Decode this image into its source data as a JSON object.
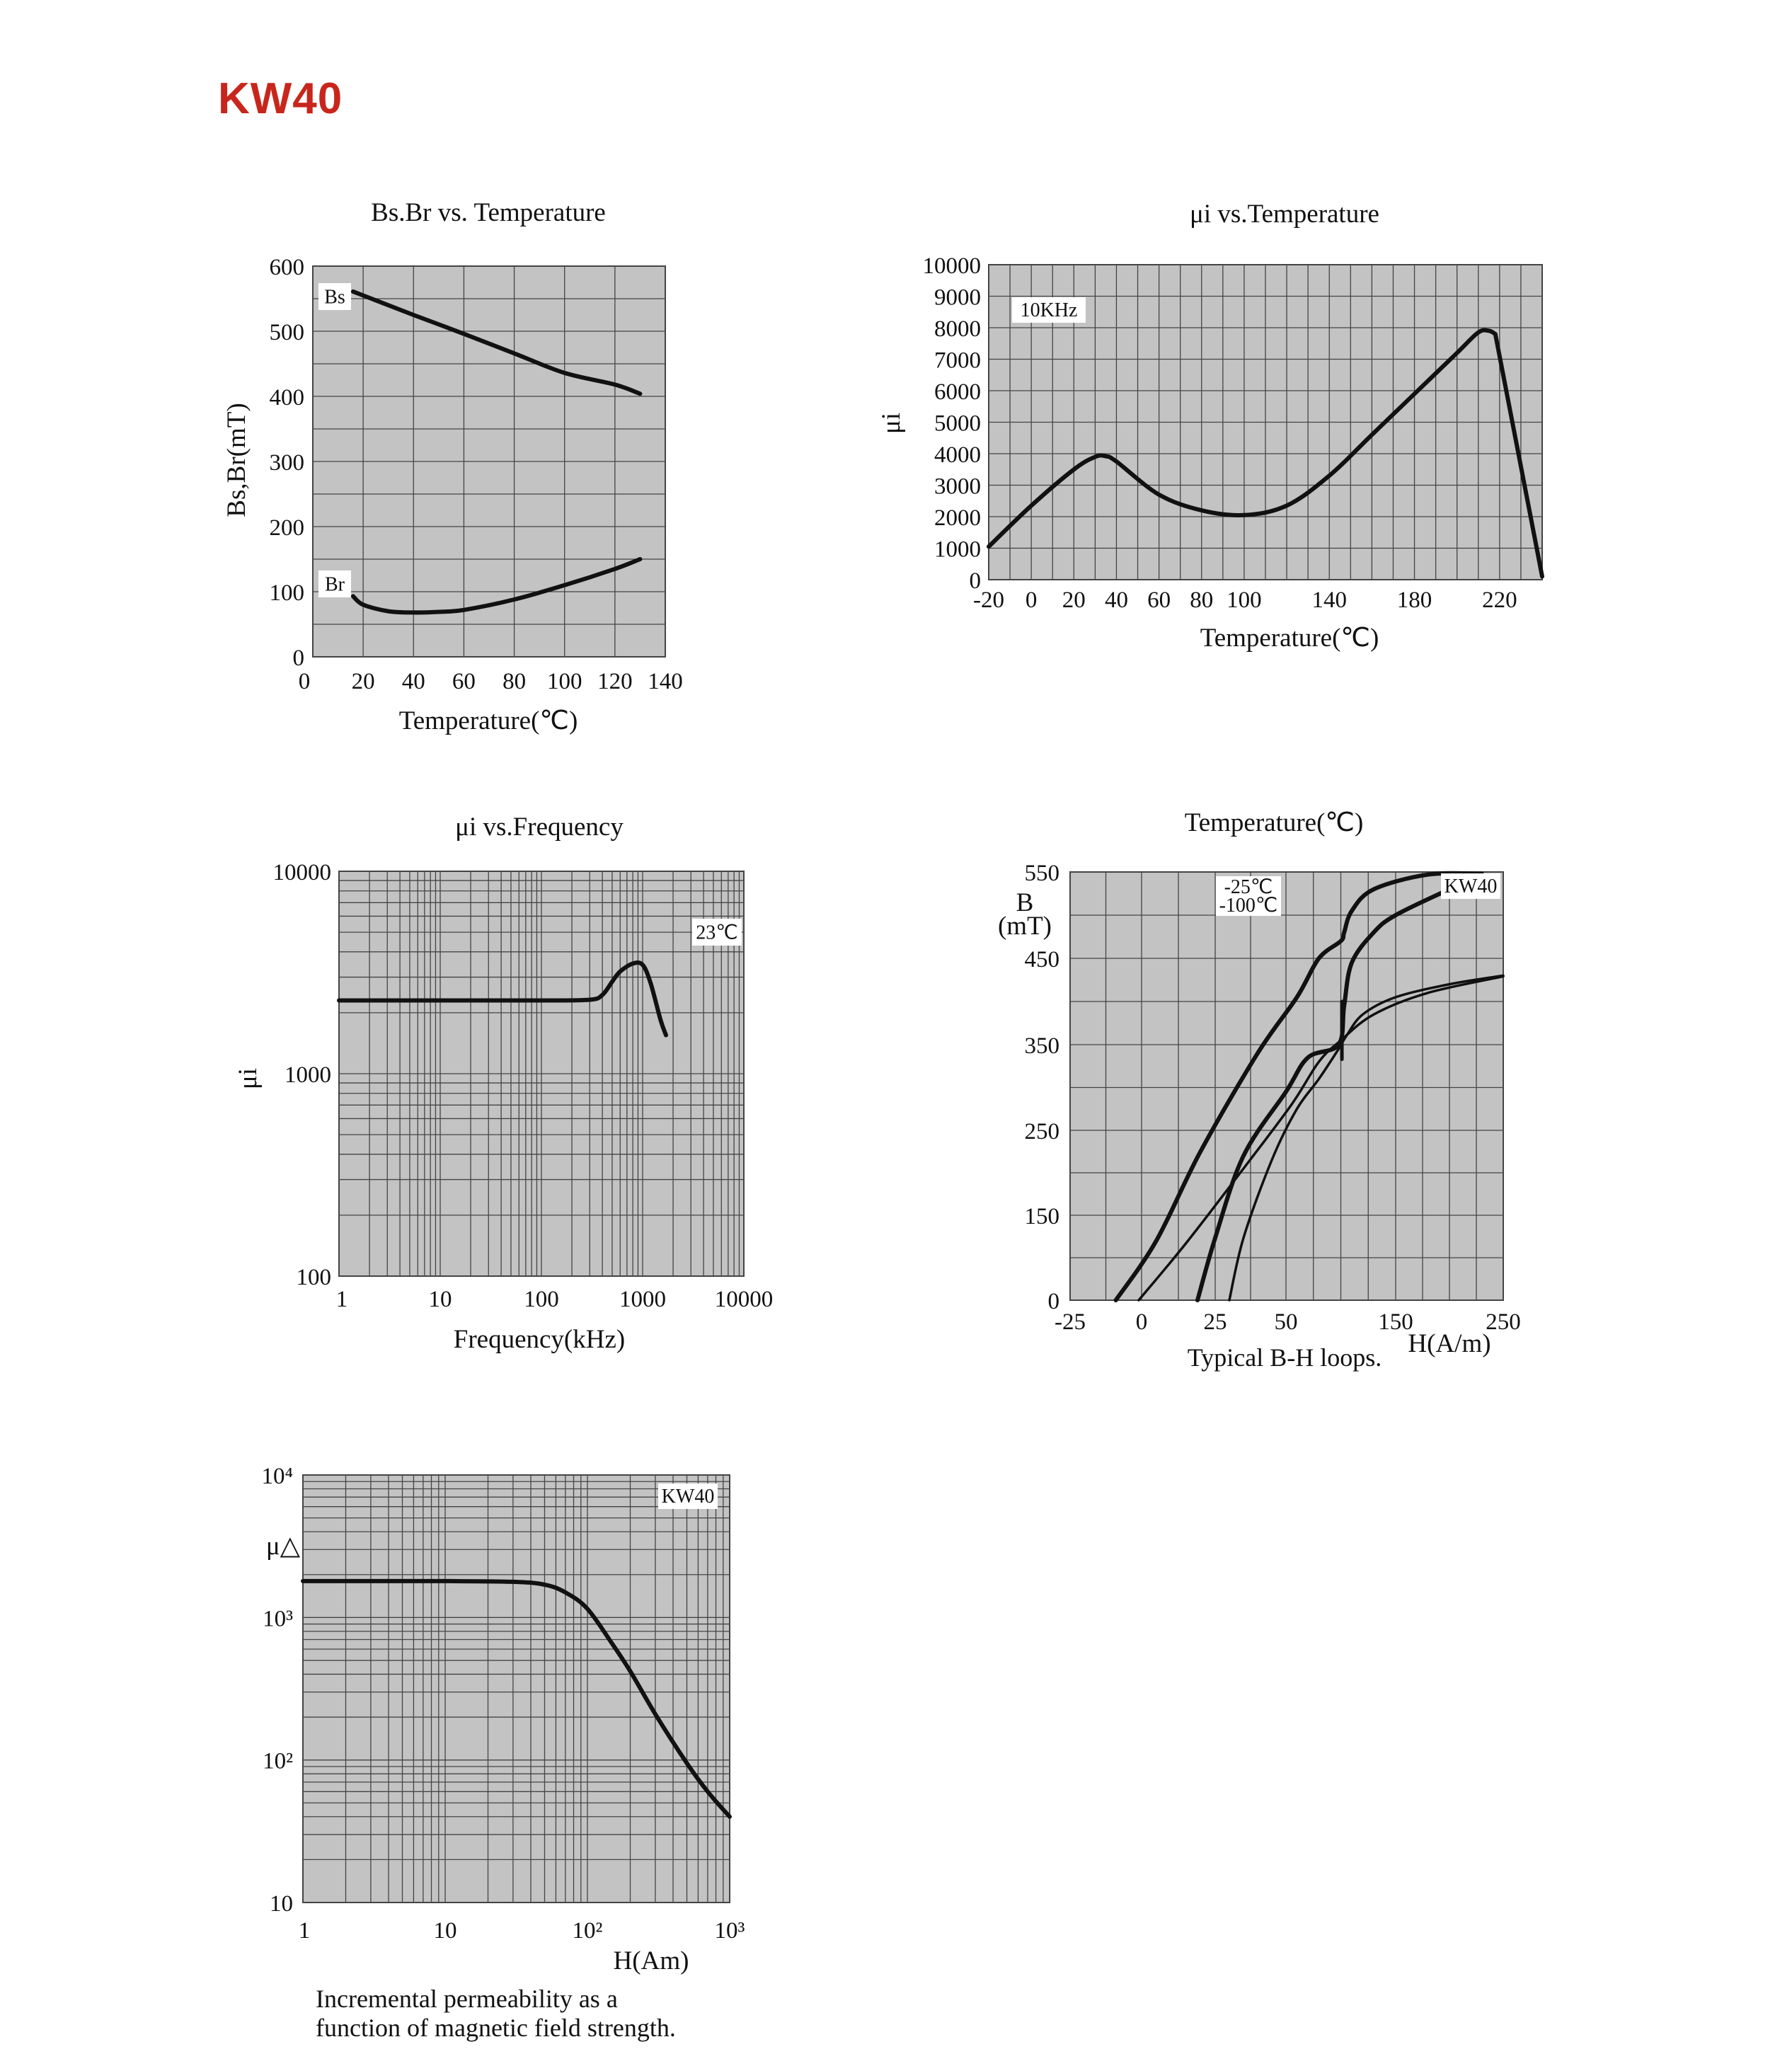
{
  "page": {
    "title": "KW40"
  },
  "chart_data": [
    {
      "id": "bsbr",
      "type": "line",
      "title": "Bs.Br  vs. Temperature",
      "xlabel": "Temperature(℃)",
      "ylabel": "Bs,Br(mT)",
      "xlim": [
        0,
        140
      ],
      "ylim": [
        0,
        600
      ],
      "xticks": [
        "0",
        "20",
        "40",
        "60",
        "80",
        "100",
        "120",
        "140"
      ],
      "yticks": [
        "0",
        "100",
        "200",
        "300",
        "400",
        "500",
        "600"
      ],
      "grid": true,
      "series": [
        {
          "name": "Bs",
          "x": [
            16,
            40,
            60,
            80,
            100,
            120,
            130
          ],
          "y": [
            561,
            525,
            496,
            466,
            436,
            418,
            404
          ]
        },
        {
          "name": "Br",
          "x": [
            16,
            20,
            30,
            40,
            50,
            60,
            80,
            100,
            120,
            130
          ],
          "y": [
            93,
            80,
            70,
            68,
            69,
            72,
            88,
            110,
            135,
            150
          ]
        }
      ]
    },
    {
      "id": "mui_temp",
      "type": "line",
      "title": "μi  vs.Temperature",
      "xlabel": "Temperature(℃)",
      "ylabel": "μi",
      "xlim": [
        -20,
        240
      ],
      "ylim": [
        0,
        10000
      ],
      "xticks": [
        "-20",
        "0",
        "20",
        "40",
        "60",
        "80",
        "100",
        "140",
        "180",
        "220"
      ],
      "yticks": [
        "0",
        "1000",
        "2000",
        "3000",
        "4000",
        "5000",
        "6000",
        "7000",
        "8000",
        "9000",
        "10000"
      ],
      "grid": true,
      "annotation": "10KHz",
      "series": [
        {
          "name": "",
          "x": [
            -20,
            0,
            20,
            30,
            35,
            40,
            60,
            80,
            100,
            120,
            140,
            160,
            180,
            200,
            210,
            215,
            218,
            240
          ],
          "y": [
            1050,
            2350,
            3500,
            3900,
            3920,
            3750,
            2700,
            2200,
            2050,
            2350,
            3300,
            4600,
            5900,
            7200,
            7850,
            7900,
            7800,
            100
          ]
        }
      ]
    },
    {
      "id": "mui_freq",
      "type": "line",
      "title": "μi  vs.Frequency",
      "xlabel": "Frequency(kHz)",
      "ylabel": "μi",
      "xscale": "log",
      "yscale": "log",
      "xlim": [
        1,
        10000
      ],
      "ylim": [
        100,
        10000
      ],
      "xticks": [
        "1",
        "10",
        "100",
        "1000",
        "10000"
      ],
      "yticks": [
        "100",
        "1000",
        "10000"
      ],
      "grid": true,
      "annotation": "23℃",
      "series": [
        {
          "name": "",
          "x": [
            1,
            10,
            100,
            300,
            400,
            500,
            600,
            800,
            1000,
            1200,
            1500,
            1700
          ],
          "y": [
            2300,
            2300,
            2300,
            2320,
            2450,
            2850,
            3200,
            3500,
            3450,
            2800,
            1850,
            1550
          ]
        }
      ]
    },
    {
      "id": "bh_loops",
      "type": "line",
      "title": "Temperature(℃)",
      "xlabel": "H(A/m)",
      "ylabel": "B\n(mT)",
      "caption": "Typical B-H loops.",
      "xlim": [
        -25,
        250
      ],
      "ylim": [
        0,
        550
      ],
      "xticks": [
        "-25",
        "0",
        "25",
        "50",
        "150",
        "250"
      ],
      "yticks": [
        "0",
        "150",
        "250",
        "350",
        "450",
        "550"
      ],
      "grid": true,
      "legend_text": [
        "-25℃",
        "-100℃"
      ],
      "annotation": "KW40",
      "series": [
        {
          "name": "",
          "curves": [
            [
              [
                -9,
                0
              ],
              [
                5,
                105
              ],
              [
                20,
                225
              ],
              [
                40,
                340
              ],
              [
                60,
                405
              ],
              [
                80,
                450
              ],
              [
                100,
                470
              ],
              [
                103,
                480
              ],
              [
                110,
                505
              ],
              [
                130,
                530
              ],
              [
                180,
                547
              ],
              [
                230,
                548
              ]
            ],
            [
              [
                19,
                0
              ],
              [
                25,
                110
              ],
              [
                35,
                220
              ],
              [
                50,
                295
              ],
              [
                70,
                335
              ],
              [
                98,
                350
              ],
              [
                103,
                395
              ],
              [
                110,
                445
              ],
              [
                130,
                480
              ],
              [
                150,
                500
              ],
              [
                200,
                530
              ],
              [
                230,
                546
              ]
            ],
            [
              [
                -1,
                0
              ],
              [
                15,
                100
              ],
              [
                35,
                205
              ],
              [
                55,
                280
              ],
              [
                80,
                330
              ],
              [
                100,
                355
              ],
              [
                130,
                385
              ],
              [
                180,
                410
              ],
              [
                250,
                429
              ]
            ],
            [
              [
                30,
                0
              ],
              [
                35,
                110
              ],
              [
                45,
                215
              ],
              [
                60,
                275
              ],
              [
                80,
                310
              ],
              [
                98,
                345
              ],
              [
                105,
                360
              ],
              [
                120,
                385
              ],
              [
                150,
                405
              ],
              [
                200,
                420
              ],
              [
                250,
                430
              ]
            ],
            [
              [
                101,
                333
              ],
              [
                101,
                400
              ]
            ]
          ]
        }
      ]
    },
    {
      "id": "mu_delta",
      "type": "line",
      "title": "",
      "xlabel": "H(Am)",
      "ylabel": "μ△",
      "caption_lines": [
        "Incremental permeability as a",
        "function of magnetic field strength."
      ],
      "xscale": "log",
      "yscale": "log",
      "xlim": [
        1,
        1000
      ],
      "ylim": [
        10,
        10000
      ],
      "xticks": [
        "1",
        "10",
        "10²",
        "10³"
      ],
      "yticks": [
        "10",
        "10²",
        "10³",
        "10⁴"
      ],
      "grid": true,
      "annotation": "KW40",
      "series": [
        {
          "name": "",
          "x": [
            1,
            10,
            30,
            50,
            70,
            100,
            150,
            200,
            300,
            500,
            700,
            1000
          ],
          "y": [
            1800,
            1800,
            1780,
            1700,
            1500,
            1150,
            650,
            420,
            210,
            95,
            60,
            40
          ]
        }
      ]
    }
  ]
}
